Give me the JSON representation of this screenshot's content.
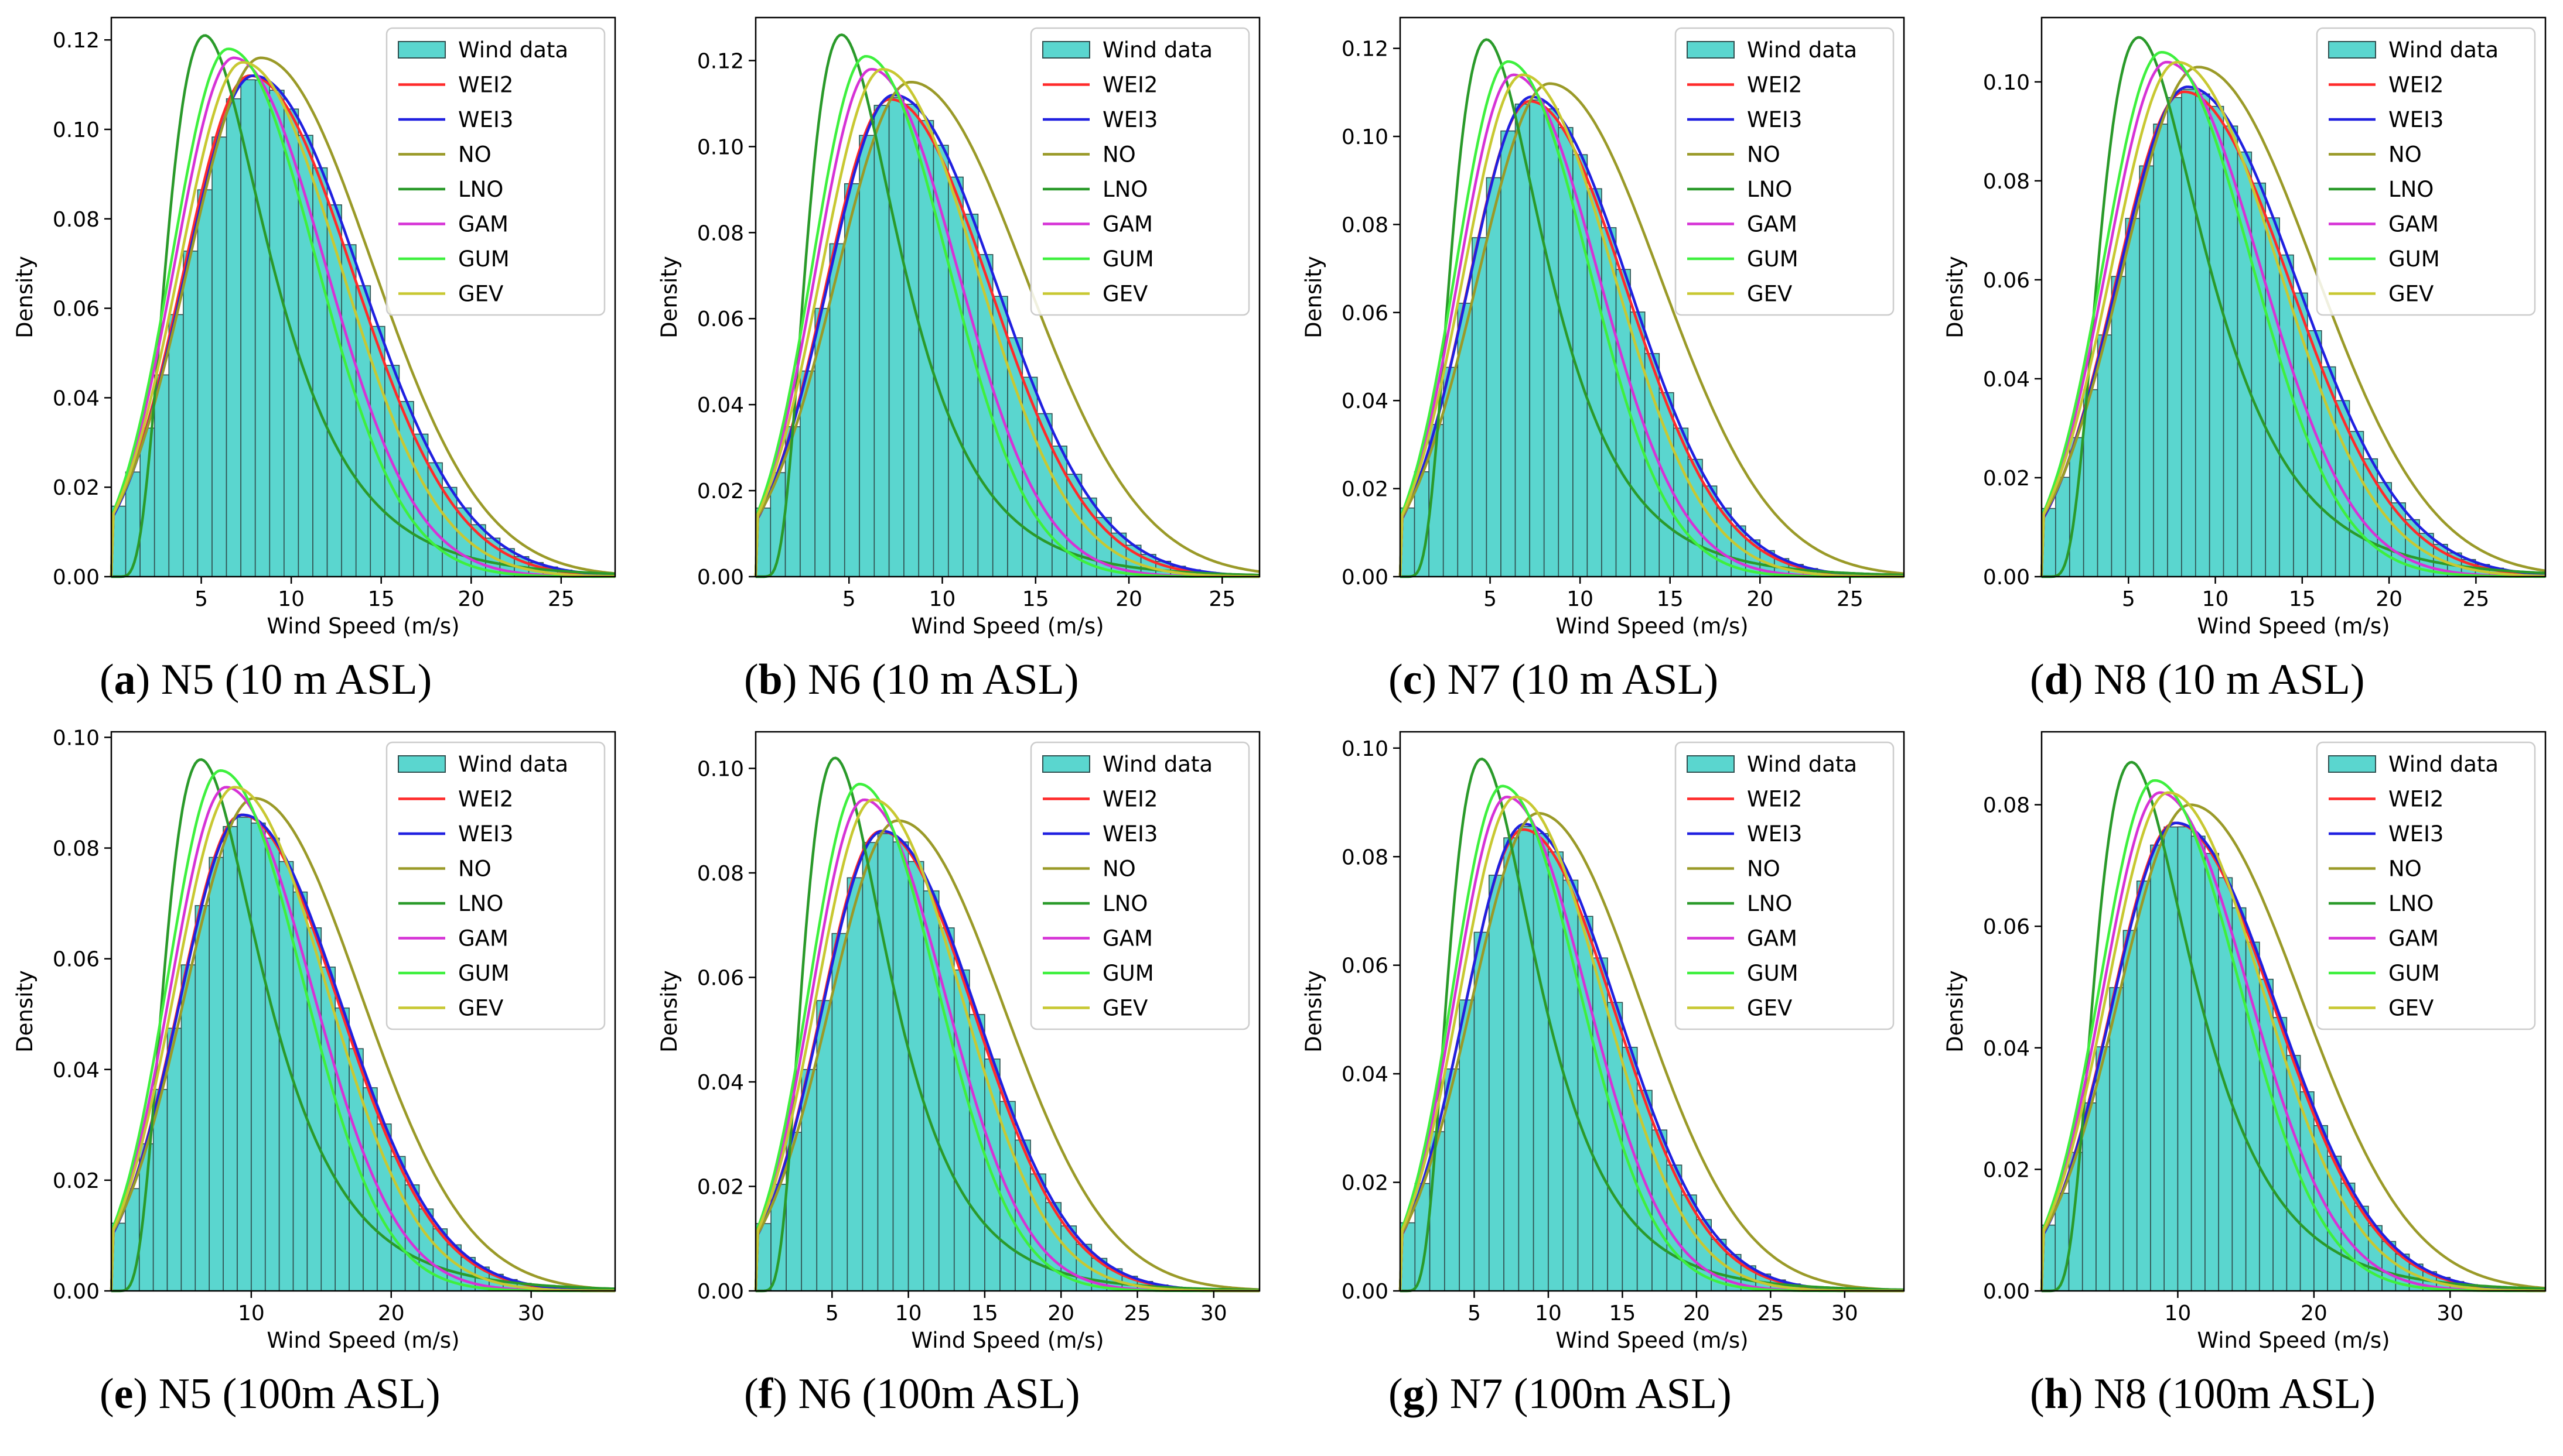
{
  "figure": {
    "colors": {
      "bar_fill": "#5ad6cf",
      "bar_edge": "#2f4f4f",
      "WEI2": "#ff2a2a",
      "WEI3": "#2020e0",
      "NO": "#9a9a28",
      "LNO": "#2a9a2a",
      "GAM": "#d632d6",
      "GUM": "#3ef03e",
      "GEV": "#c8c832"
    }
  },
  "chart_data": [
    {
      "type": "bar",
      "id": "a",
      "caption_letter": "a",
      "caption_text": "N5 (10 m ASL)",
      "xlabel": "Wind Speed (m/s)",
      "ylabel": "Density",
      "xlim": [
        0,
        28
      ],
      "ylim": [
        0,
        0.125
      ],
      "xticks": [
        "5",
        "10",
        "15",
        "20",
        "25"
      ],
      "yticks": [
        "0.00",
        "0.02",
        "0.04",
        "0.06",
        "0.08",
        "0.10",
        "0.12"
      ],
      "legend": [
        "Wind data",
        "WEI2",
        "WEI3",
        "NO",
        "LNO",
        "GAM",
        "GUM",
        "GEV"
      ],
      "legend_position": "top-right",
      "series": [
        {
          "name": "WEI2",
          "mode": 7.7,
          "peak": 0.112
        },
        {
          "name": "WEI3",
          "mode": 7.9,
          "peak": 0.112
        },
        {
          "name": "NO",
          "mode": 8.3,
          "peak": 0.116
        },
        {
          "name": "LNO",
          "mode": 5.2,
          "peak": 0.121
        },
        {
          "name": "GAM",
          "mode": 6.8,
          "peak": 0.116
        },
        {
          "name": "GUM",
          "mode": 6.5,
          "peak": 0.118
        },
        {
          "name": "GEV",
          "mode": 7.3,
          "peak": 0.115
        }
      ]
    },
    {
      "type": "bar",
      "id": "b",
      "caption_letter": "b",
      "caption_text": "N6 (10 m ASL)",
      "xlabel": "Wind Speed (m/s)",
      "ylabel": "Density",
      "xlim": [
        0,
        27
      ],
      "ylim": [
        0,
        0.13
      ],
      "xticks": [
        "5",
        "10",
        "15",
        "20",
        "25"
      ],
      "yticks": [
        "0.00",
        "0.02",
        "0.04",
        "0.06",
        "0.08",
        "0.10",
        "0.12"
      ],
      "legend": [
        "Wind data",
        "WEI2",
        "WEI3",
        "NO",
        "LNO",
        "GAM",
        "GUM",
        "GEV"
      ],
      "legend_position": "top-right",
      "series": [
        {
          "name": "WEI2",
          "mode": 7.2,
          "peak": 0.111
        },
        {
          "name": "WEI3",
          "mode": 7.4,
          "peak": 0.112
        },
        {
          "name": "NO",
          "mode": 8.3,
          "peak": 0.115
        },
        {
          "name": "LNO",
          "mode": 4.6,
          "peak": 0.126
        },
        {
          "name": "GAM",
          "mode": 6.2,
          "peak": 0.118
        },
        {
          "name": "GUM",
          "mode": 5.9,
          "peak": 0.121
        },
        {
          "name": "GEV",
          "mode": 6.8,
          "peak": 0.118
        }
      ]
    },
    {
      "type": "bar",
      "id": "c",
      "caption_letter": "c",
      "caption_text": "N7 (10 m ASL)",
      "xlabel": "Wind Speed (m/s)",
      "ylabel": "Density",
      "xlim": [
        0,
        28
      ],
      "ylim": [
        0,
        0.127
      ],
      "xticks": [
        "5",
        "10",
        "15",
        "20",
        "25"
      ],
      "yticks": [
        "0.00",
        "0.02",
        "0.04",
        "0.06",
        "0.08",
        "0.10",
        "0.12"
      ],
      "legend": [
        "Wind data",
        "WEI2",
        "WEI3",
        "NO",
        "LNO",
        "GAM",
        "GUM",
        "GEV"
      ],
      "legend_position": "top-right",
      "series": [
        {
          "name": "WEI2",
          "mode": 7.2,
          "peak": 0.108
        },
        {
          "name": "WEI3",
          "mode": 7.3,
          "peak": 0.109
        },
        {
          "name": "NO",
          "mode": 8.3,
          "peak": 0.112
        },
        {
          "name": "LNO",
          "mode": 4.8,
          "peak": 0.122
        },
        {
          "name": "GAM",
          "mode": 6.3,
          "peak": 0.114
        },
        {
          "name": "GUM",
          "mode": 6.0,
          "peak": 0.117
        },
        {
          "name": "GEV",
          "mode": 6.8,
          "peak": 0.114
        }
      ]
    },
    {
      "type": "bar",
      "id": "d",
      "caption_letter": "d",
      "caption_text": "N8 (10 m ASL)",
      "xlabel": "Wind Speed (m/s)",
      "ylabel": "Density",
      "xlim": [
        0,
        29
      ],
      "ylim": [
        0,
        0.113
      ],
      "xticks": [
        "5",
        "10",
        "15",
        "20",
        "25"
      ],
      "yticks": [
        "0.00",
        "0.02",
        "0.04",
        "0.06",
        "0.08",
        "0.10"
      ],
      "legend": [
        "Wind data",
        "WEI2",
        "WEI3",
        "NO",
        "LNO",
        "GAM",
        "GUM",
        "GEV"
      ],
      "legend_position": "top-right",
      "series": [
        {
          "name": "WEI2",
          "mode": 8.2,
          "peak": 0.098
        },
        {
          "name": "WEI3",
          "mode": 8.4,
          "peak": 0.099
        },
        {
          "name": "NO",
          "mode": 9.0,
          "peak": 0.103
        },
        {
          "name": "LNO",
          "mode": 5.6,
          "peak": 0.109
        },
        {
          "name": "GAM",
          "mode": 7.2,
          "peak": 0.104
        },
        {
          "name": "GUM",
          "mode": 6.9,
          "peak": 0.106
        },
        {
          "name": "GEV",
          "mode": 7.8,
          "peak": 0.104
        }
      ]
    },
    {
      "type": "bar",
      "id": "e",
      "caption_letter": "e",
      "caption_text": "N5 (100m ASL)",
      "xlabel": "Wind Speed (m/s)",
      "ylabel": "Density",
      "xlim": [
        0,
        36
      ],
      "ylim": [
        0,
        0.101
      ],
      "xticks": [
        "10",
        "20",
        "30"
      ],
      "yticks": [
        "0.00",
        "0.02",
        "0.04",
        "0.06",
        "0.08",
        "0.10"
      ],
      "legend": [
        "Wind data",
        "WEI2",
        "WEI3",
        "NO",
        "LNO",
        "GAM",
        "GUM",
        "GEV"
      ],
      "legend_position": "top-right",
      "series": [
        {
          "name": "WEI2",
          "mode": 9.3,
          "peak": 0.086
        },
        {
          "name": "WEI3",
          "mode": 9.4,
          "peak": 0.086
        },
        {
          "name": "NO",
          "mode": 10.2,
          "peak": 0.089
        },
        {
          "name": "LNO",
          "mode": 6.4,
          "peak": 0.096
        },
        {
          "name": "GAM",
          "mode": 8.2,
          "peak": 0.091
        },
        {
          "name": "GUM",
          "mode": 7.8,
          "peak": 0.094
        },
        {
          "name": "GEV",
          "mode": 8.8,
          "peak": 0.091
        }
      ]
    },
    {
      "type": "bar",
      "id": "f",
      "caption_letter": "f",
      "caption_text": "N6 (100m ASL)",
      "xlabel": "Wind Speed (m/s)",
      "ylabel": "Density",
      "xlim": [
        0,
        33
      ],
      "ylim": [
        0,
        0.107
      ],
      "xticks": [
        "5",
        "10",
        "15",
        "20",
        "25",
        "30"
      ],
      "yticks": [
        "0.00",
        "0.02",
        "0.04",
        "0.06",
        "0.08",
        "0.10"
      ],
      "legend": [
        "Wind data",
        "WEI2",
        "WEI3",
        "NO",
        "LNO",
        "GAM",
        "GUM",
        "GEV"
      ],
      "legend_position": "top-right",
      "series": [
        {
          "name": "WEI2",
          "mode": 8.2,
          "peak": 0.088
        },
        {
          "name": "WEI3",
          "mode": 8.3,
          "peak": 0.088
        },
        {
          "name": "NO",
          "mode": 9.3,
          "peak": 0.09
        },
        {
          "name": "LNO",
          "mode": 5.2,
          "peak": 0.102
        },
        {
          "name": "GAM",
          "mode": 7.1,
          "peak": 0.094
        },
        {
          "name": "GUM",
          "mode": 6.8,
          "peak": 0.097
        },
        {
          "name": "GEV",
          "mode": 7.7,
          "peak": 0.094
        }
      ]
    },
    {
      "type": "bar",
      "id": "g",
      "caption_letter": "g",
      "caption_text": "N7 (100m ASL)",
      "xlabel": "Wind Speed (m/s)",
      "ylabel": "Density",
      "xlim": [
        0,
        34
      ],
      "ylim": [
        0,
        0.103
      ],
      "xticks": [
        "5",
        "10",
        "15",
        "20",
        "25",
        "30"
      ],
      "yticks": [
        "0.00",
        "0.02",
        "0.04",
        "0.06",
        "0.08",
        "0.10"
      ],
      "legend": [
        "Wind data",
        "WEI2",
        "WEI3",
        "NO",
        "LNO",
        "GAM",
        "GUM",
        "GEV"
      ],
      "legend_position": "top-right",
      "series": [
        {
          "name": "WEI2",
          "mode": 8.3,
          "peak": 0.085
        },
        {
          "name": "WEI3",
          "mode": 8.4,
          "peak": 0.086
        },
        {
          "name": "NO",
          "mode": 9.3,
          "peak": 0.088
        },
        {
          "name": "LNO",
          "mode": 5.5,
          "peak": 0.098
        },
        {
          "name": "GAM",
          "mode": 7.2,
          "peak": 0.091
        },
        {
          "name": "GUM",
          "mode": 6.9,
          "peak": 0.093
        },
        {
          "name": "GEV",
          "mode": 7.8,
          "peak": 0.091
        }
      ]
    },
    {
      "type": "bar",
      "id": "h",
      "caption_letter": "h",
      "caption_text": "N8 (100m ASL)",
      "xlabel": "Wind Speed (m/s)",
      "ylabel": "Density",
      "xlim": [
        0,
        37
      ],
      "ylim": [
        0,
        0.092
      ],
      "xticks": [
        "10",
        "20",
        "30"
      ],
      "yticks": [
        "0.00",
        "0.02",
        "0.04",
        "0.06",
        "0.08"
      ],
      "legend": [
        "Wind data",
        "WEI2",
        "WEI3",
        "NO",
        "LNO",
        "GAM",
        "GUM",
        "GEV"
      ],
      "legend_position": "top-right",
      "series": [
        {
          "name": "WEI2",
          "mode": 9.8,
          "peak": 0.077
        },
        {
          "name": "WEI3",
          "mode": 9.9,
          "peak": 0.077
        },
        {
          "name": "NO",
          "mode": 10.9,
          "peak": 0.08
        },
        {
          "name": "LNO",
          "mode": 6.6,
          "peak": 0.087
        },
        {
          "name": "GAM",
          "mode": 8.7,
          "peak": 0.082
        },
        {
          "name": "GUM",
          "mode": 8.3,
          "peak": 0.084
        },
        {
          "name": "GEV",
          "mode": 9.3,
          "peak": 0.082
        }
      ]
    }
  ]
}
